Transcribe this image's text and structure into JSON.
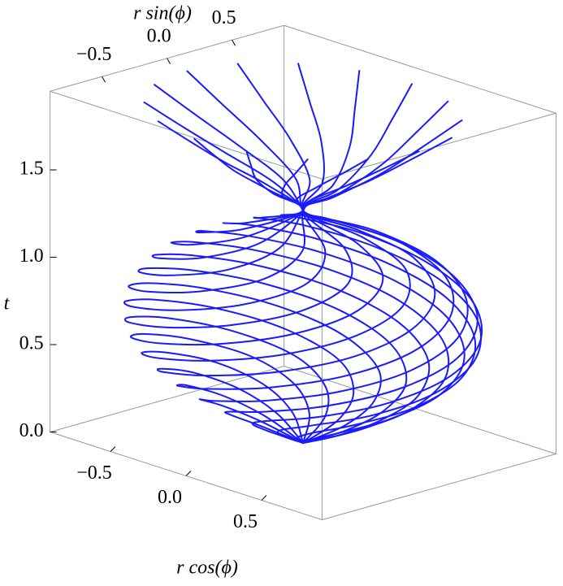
{
  "chart_data": {
    "type": "curve3d",
    "xlabel": "r cos(ϕ)",
    "ylabel": "r sin(ϕ)",
    "zlabel": "t",
    "xlim": [
      -0.9,
      0.9
    ],
    "ylim": [
      -0.9,
      0.9
    ],
    "zlim": [
      0,
      1.95
    ],
    "xticks": [
      {
        "value": -0.5,
        "label": "−0.5"
      },
      {
        "value": 0,
        "label": "0.0"
      },
      {
        "value": 0.5,
        "label": "0.5"
      }
    ],
    "yticks": [
      {
        "value": -0.5,
        "label": "−0.5"
      },
      {
        "value": 0,
        "label": "0.0"
      },
      {
        "value": 0.5,
        "label": "0.5"
      }
    ],
    "zticks": [
      {
        "value": 0,
        "label": "0.0"
      },
      {
        "value": 0.5,
        "label": "0.5"
      },
      {
        "value": 1,
        "label": "1.0"
      },
      {
        "value": 1.5,
        "label": "1.5"
      }
    ],
    "color": "#1a1aff",
    "phi0": [
      0,
      22.5,
      45,
      67.5,
      90,
      112.5,
      135,
      157.5,
      180,
      202.5,
      225,
      247.5,
      270,
      292.5,
      315,
      337.5
    ],
    "profile": {
      "t": [
        0,
        0.1,
        0.2,
        0.3,
        0.4,
        0.5,
        0.6,
        0.7,
        0.8,
        0.9,
        1.0,
        1.1,
        1.2,
        1.33,
        1.45,
        1.6,
        1.75,
        1.9
      ],
      "r": [
        0,
        0.22,
        0.41,
        0.58,
        0.72,
        0.82,
        0.88,
        0.9,
        0.88,
        0.82,
        0.72,
        0.55,
        0.3,
        0,
        0.18,
        0.4,
        0.6,
        0.8
      ],
      "phi": [
        0,
        10,
        25,
        45,
        70,
        95,
        120,
        145,
        170,
        195,
        220,
        245,
        265,
        270,
        300,
        320,
        330,
        335
      ]
    }
  }
}
